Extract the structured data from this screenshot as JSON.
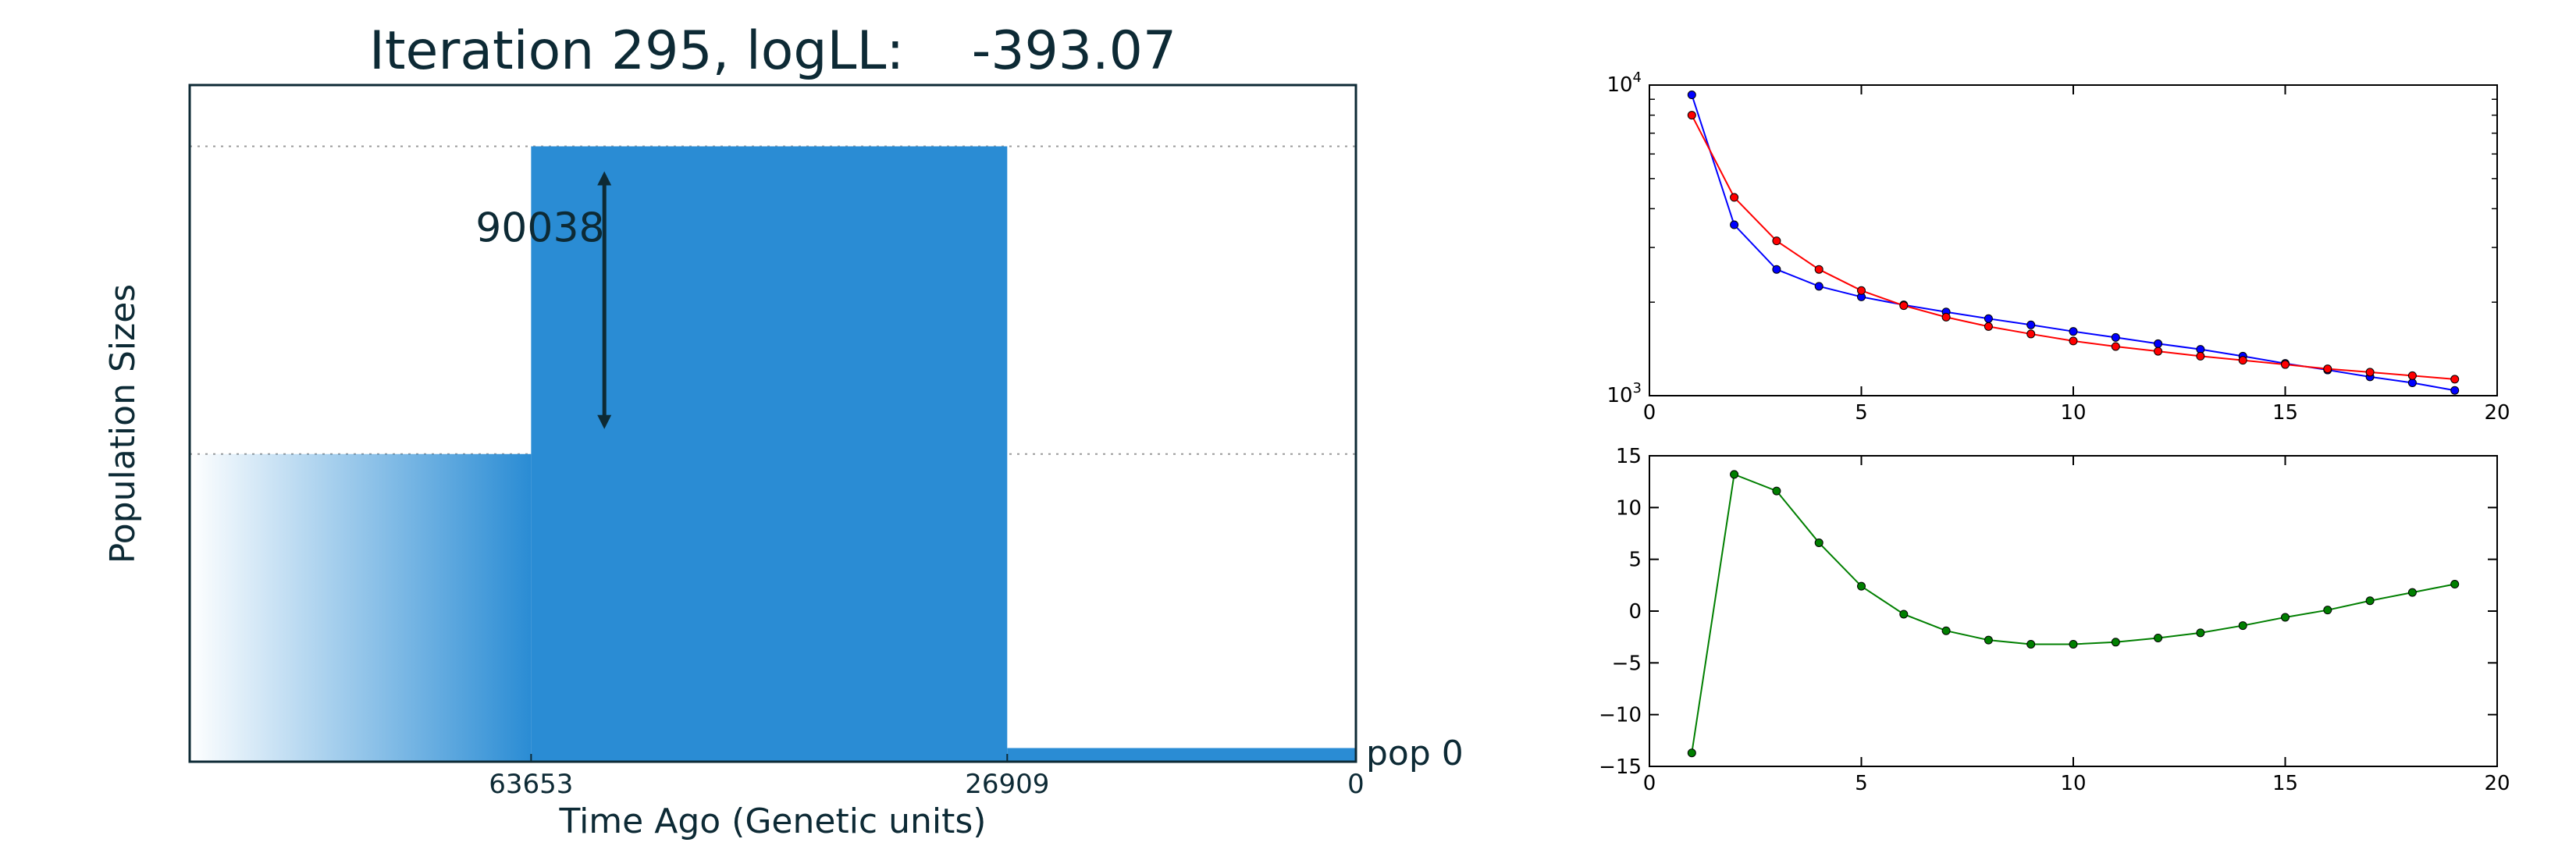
{
  "chart_data": [
    {
      "type": "area",
      "title": "Iteration 295, logLL:    -393.07",
      "xlabel": "Time Ago (Genetic units)",
      "ylabel": "Population Sizes",
      "x_tick_labels": [
        "63653",
        "26909",
        "0"
      ],
      "x_axis_direction": "reversed",
      "series": [
        {
          "name": "pop 0",
          "color": "#2a8cd4",
          "segments": [
            {
              "start": 63653,
              "end": 90000,
              "size": 90038,
              "fade": true
            },
            {
              "start": 26909,
              "end": 63653,
              "size": 180076
            },
            {
              "start": 0,
              "end": 26909,
              "size": 4000
            }
          ]
        }
      ],
      "annotations": [
        {
          "type": "arrow",
          "label": "90038",
          "x": 58000,
          "from": 90038,
          "to": 180076
        }
      ],
      "ylim": [
        0,
        198000
      ],
      "reference_lines": [
        90038,
        180076
      ],
      "grid": false
    },
    {
      "type": "line",
      "title": "",
      "xlabel": "",
      "ylabel": "",
      "yscale": "log",
      "xlim": [
        0,
        20
      ],
      "ylim": [
        1000,
        10000
      ],
      "x_ticks": [
        0,
        5,
        10,
        15,
        20
      ],
      "y_tick_labels": [
        {
          "base": "10",
          "exp": "3"
        },
        {
          "base": "10",
          "exp": "4"
        }
      ],
      "x": [
        1,
        2,
        3,
        4,
        5,
        6,
        7,
        8,
        9,
        10,
        11,
        12,
        13,
        14,
        15,
        16,
        17,
        18,
        19
      ],
      "series": [
        {
          "color": "#0000ff",
          "values": [
            9300,
            3550,
            2550,
            2250,
            2080,
            1960,
            1860,
            1770,
            1690,
            1610,
            1540,
            1470,
            1410,
            1340,
            1270,
            1210,
            1150,
            1100,
            1040
          ]
        },
        {
          "color": "#ff0000",
          "values": [
            8000,
            4350,
            3150,
            2550,
            2180,
            1950,
            1790,
            1670,
            1580,
            1500,
            1440,
            1390,
            1340,
            1300,
            1260,
            1220,
            1190,
            1160,
            1130
          ]
        }
      ]
    },
    {
      "type": "line",
      "title": "",
      "xlabel": "",
      "ylabel": "",
      "xlim": [
        0,
        20
      ],
      "ylim": [
        -15,
        15
      ],
      "x_ticks": [
        0,
        5,
        10,
        15,
        20
      ],
      "y_ticks": [
        -15,
        -10,
        -5,
        0,
        5,
        10,
        15
      ],
      "x": [
        1,
        2,
        3,
        4,
        5,
        6,
        7,
        8,
        9,
        10,
        11,
        12,
        13,
        14,
        15,
        16,
        17,
        18,
        19
      ],
      "series": [
        {
          "color": "#007f00",
          "values": [
            -13.7,
            13.2,
            11.6,
            6.6,
            2.4,
            -0.3,
            -1.9,
            -2.8,
            -3.2,
            -3.2,
            -3.0,
            -2.6,
            -2.1,
            -1.4,
            -0.6,
            0.1,
            1.0,
            1.8,
            2.6
          ]
        }
      ]
    }
  ]
}
